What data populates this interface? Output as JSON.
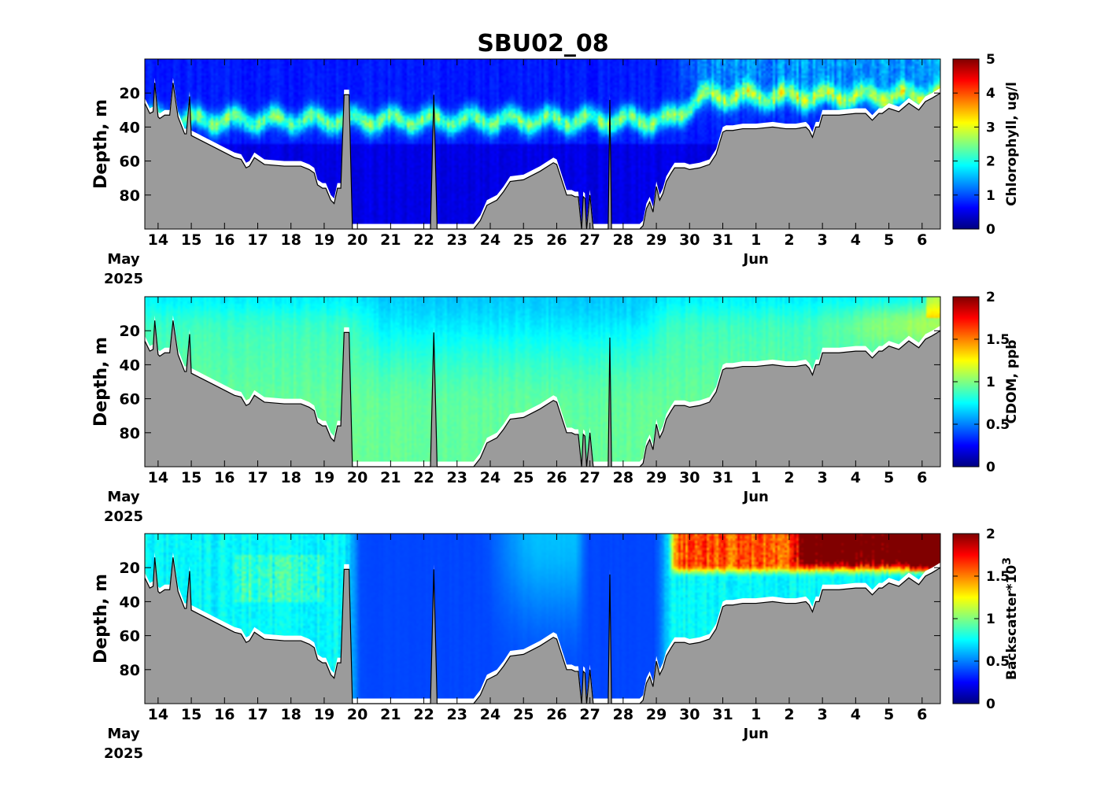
{
  "chart_data": [
    {
      "type": "heatmap",
      "title": "SBU02_08",
      "variable": "chlorophyll",
      "ylabel": "Depth, m",
      "colorbar_label": "Chlorophyll, ug/l",
      "colorbar_ticks": [
        "0",
        "1",
        "2",
        "3",
        "4",
        "5"
      ],
      "colorbar_range": [
        0,
        5
      ],
      "colormap": "jet",
      "ylim": [
        0,
        100
      ],
      "yticks": [
        "20",
        "40",
        "60",
        "80"
      ],
      "ytick_values": [
        20,
        40,
        60,
        80
      ],
      "xlim_days": [
        13.6,
        37.55
      ],
      "xticks": [
        "14",
        "15",
        "16",
        "17",
        "18",
        "19",
        "20",
        "21",
        "22",
        "23",
        "24",
        "25",
        "26",
        "27",
        "28",
        "29",
        "30",
        "31",
        "1",
        "2",
        "3",
        "4",
        "5",
        "6"
      ],
      "xtick_days": [
        14,
        15,
        16,
        17,
        18,
        19,
        20,
        21,
        22,
        23,
        24,
        25,
        26,
        27,
        28,
        29,
        30,
        31,
        32,
        33,
        34,
        35,
        36,
        37
      ],
      "month_labels": [
        {
          "text": "May",
          "day": 13.6
        },
        {
          "text": "Jun",
          "day": 32
        }
      ],
      "year_label": "2025",
      "seafloor_color": "#9b9b9b"
    },
    {
      "type": "heatmap",
      "variable": "cdom",
      "ylabel": "Depth, m",
      "colorbar_label": "CDOM, ppb",
      "colorbar_ticks": [
        "0",
        "0.5",
        "1",
        "1.5",
        "2"
      ],
      "colorbar_range": [
        0,
        2
      ],
      "colormap": "jet",
      "ylim": [
        0,
        100
      ],
      "yticks": [
        "20",
        "40",
        "60",
        "80"
      ],
      "ytick_values": [
        20,
        40,
        60,
        80
      ],
      "xlim_days": [
        13.6,
        37.55
      ],
      "xticks": [
        "14",
        "15",
        "16",
        "17",
        "18",
        "19",
        "20",
        "21",
        "22",
        "23",
        "24",
        "25",
        "26",
        "27",
        "28",
        "29",
        "30",
        "31",
        "1",
        "2",
        "3",
        "4",
        "5",
        "6"
      ],
      "xtick_days": [
        14,
        15,
        16,
        17,
        18,
        19,
        20,
        21,
        22,
        23,
        24,
        25,
        26,
        27,
        28,
        29,
        30,
        31,
        32,
        33,
        34,
        35,
        36,
        37
      ],
      "month_labels": [
        {
          "text": "May",
          "day": 13.6
        },
        {
          "text": "Jun",
          "day": 32
        }
      ],
      "year_label": "2025",
      "seafloor_color": "#9b9b9b"
    },
    {
      "type": "heatmap",
      "variable": "backscatter",
      "ylabel": "Depth, m",
      "colorbar_label": "Backscatter*10",
      "colorbar_label_sup": "3",
      "colorbar_ticks": [
        "0",
        "0.5",
        "1",
        "1.5",
        "2"
      ],
      "colorbar_range": [
        0,
        2
      ],
      "colormap": "jet",
      "ylim": [
        0,
        100
      ],
      "yticks": [
        "20",
        "40",
        "60",
        "80"
      ],
      "ytick_values": [
        20,
        40,
        60,
        80
      ],
      "xlim_days": [
        13.6,
        37.55
      ],
      "xticks": [
        "14",
        "15",
        "16",
        "17",
        "18",
        "19",
        "20",
        "21",
        "22",
        "23",
        "24",
        "25",
        "26",
        "27",
        "28",
        "29",
        "30",
        "31",
        "1",
        "2",
        "3",
        "4",
        "5",
        "6"
      ],
      "xtick_days": [
        14,
        15,
        16,
        17,
        18,
        19,
        20,
        21,
        22,
        23,
        24,
        25,
        26,
        27,
        28,
        29,
        30,
        31,
        32,
        33,
        34,
        35,
        36,
        37
      ],
      "month_labels": [
        {
          "text": "May",
          "day": 13.6
        },
        {
          "text": "Jun",
          "day": 32
        }
      ],
      "year_label": "2025",
      "seafloor_color": "#9b9b9b"
    }
  ],
  "bathymetry": {
    "days": [
      13.6,
      13.75,
      13.85,
      13.9,
      14.0,
      14.05,
      14.2,
      14.35,
      14.45,
      14.6,
      14.8,
      14.85,
      14.95,
      15.0,
      15.3,
      15.7,
      16.0,
      16.3,
      16.5,
      16.65,
      16.75,
      16.9,
      17.2,
      17.8,
      18.3,
      18.55,
      18.7,
      18.8,
      18.95,
      19.05,
      19.2,
      19.3,
      19.4,
      19.5,
      19.6,
      19.75,
      19.85,
      19.9,
      20.0,
      20.5,
      21.0,
      21.5,
      22.0,
      22.2,
      22.3,
      22.4,
      22.6,
      23.0,
      23.3,
      23.5,
      23.7,
      23.9,
      24.2,
      24.4,
      24.6,
      25.0,
      25.5,
      25.9,
      26.0,
      26.1,
      26.3,
      26.45,
      26.55,
      26.65,
      26.75,
      26.8,
      26.85,
      26.9,
      27.0,
      27.1,
      27.2,
      27.3,
      27.4,
      27.5,
      27.55,
      27.6,
      27.65,
      27.7,
      27.9,
      28.3,
      28.5,
      28.6,
      28.7,
      28.8,
      28.9,
      29.0,
      29.1,
      29.2,
      29.3,
      29.45,
      29.55,
      29.7,
      29.85,
      30.0,
      30.3,
      30.6,
      30.8,
      31.0,
      31.1,
      31.3,
      31.6,
      32.0,
      32.5,
      32.9,
      33.2,
      33.5,
      33.6,
      33.7,
      33.8,
      33.9,
      34.0,
      34.5,
      35.0,
      35.3,
      35.5,
      35.7,
      35.8,
      36.0,
      36.3,
      36.6,
      36.9,
      37.1,
      37.3,
      37.55
    ],
    "depths": [
      26,
      32,
      31,
      14,
      34,
      35,
      33,
      33,
      14,
      34,
      44,
      44,
      22,
      45,
      48,
      52,
      55,
      58,
      59,
      64,
      63,
      58,
      62,
      63,
      63,
      65,
      67,
      74,
      76,
      76,
      83,
      85,
      76,
      76,
      21,
      21,
      100,
      100,
      100,
      100,
      100,
      100,
      100,
      100,
      21,
      100,
      100,
      100,
      100,
      100,
      95,
      86,
      83,
      78,
      72,
      71,
      66,
      61,
      62,
      68,
      80,
      80,
      81,
      81,
      100,
      81,
      82,
      100,
      80,
      100,
      100,
      100,
      100,
      100,
      100,
      24,
      100,
      100,
      100,
      100,
      100,
      98,
      88,
      84,
      90,
      75,
      83,
      79,
      72,
      67,
      64,
      64,
      64,
      65,
      64,
      62,
      56,
      43,
      42,
      42,
      41,
      41,
      40,
      41,
      41,
      40,
      42,
      46,
      40,
      40,
      33,
      33,
      32,
      32,
      36,
      32,
      32,
      29,
      31,
      26,
      30,
      25,
      23,
      20
    ]
  }
}
